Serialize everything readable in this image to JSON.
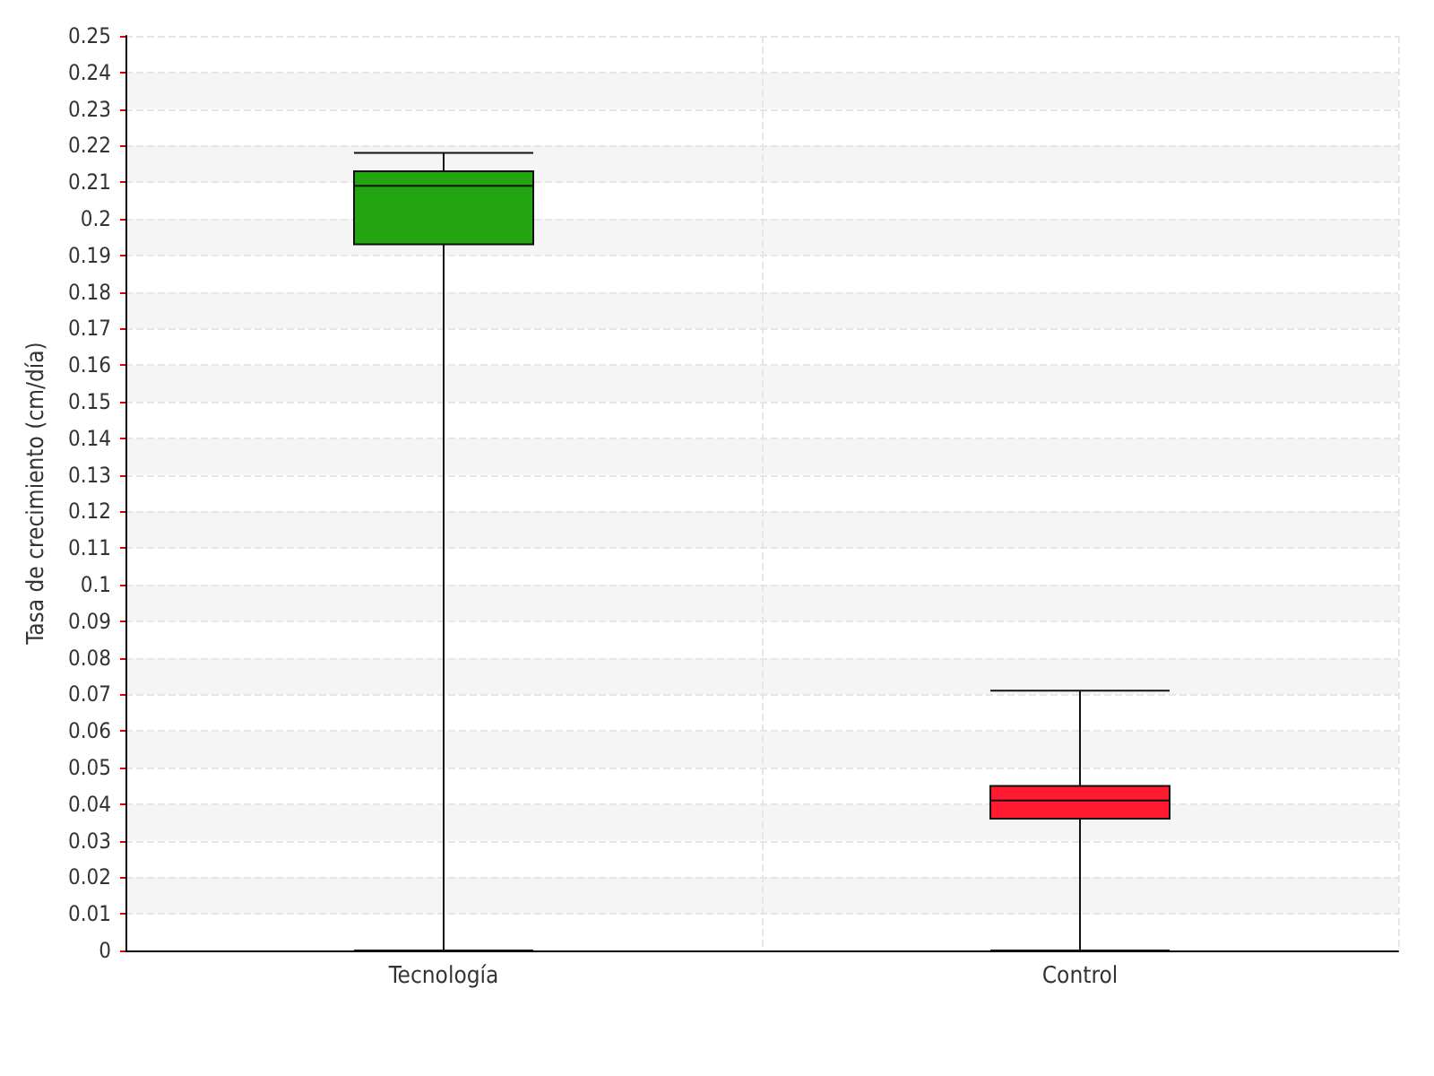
{
  "chart_data": {
    "type": "box",
    "categories": [
      "Tecnología",
      "Control"
    ],
    "ylabel": "Tasa de crecimiento (cm/día)",
    "colors": [
      "#22a511",
      "#ff1a2f"
    ],
    "boxes": [
      {
        "low": 0,
        "q1": 0.193,
        "median": 0.209,
        "q3": 0.213,
        "high": 0.218
      },
      {
        "low": 0,
        "q1": 0.036,
        "median": 0.041,
        "q3": 0.045,
        "high": 0.071
      }
    ],
    "ylim": [
      0,
      0.25
    ],
    "yticks": [
      0,
      0.01,
      0.02,
      0.03,
      0.04,
      0.05,
      0.06,
      0.07,
      0.08,
      0.09,
      0.1,
      0.11,
      0.12,
      0.13,
      0.14,
      0.15,
      0.16,
      0.17,
      0.18,
      0.19,
      0.2,
      0.21,
      0.22,
      0.23,
      0.24,
      0.25
    ],
    "grid": true
  }
}
